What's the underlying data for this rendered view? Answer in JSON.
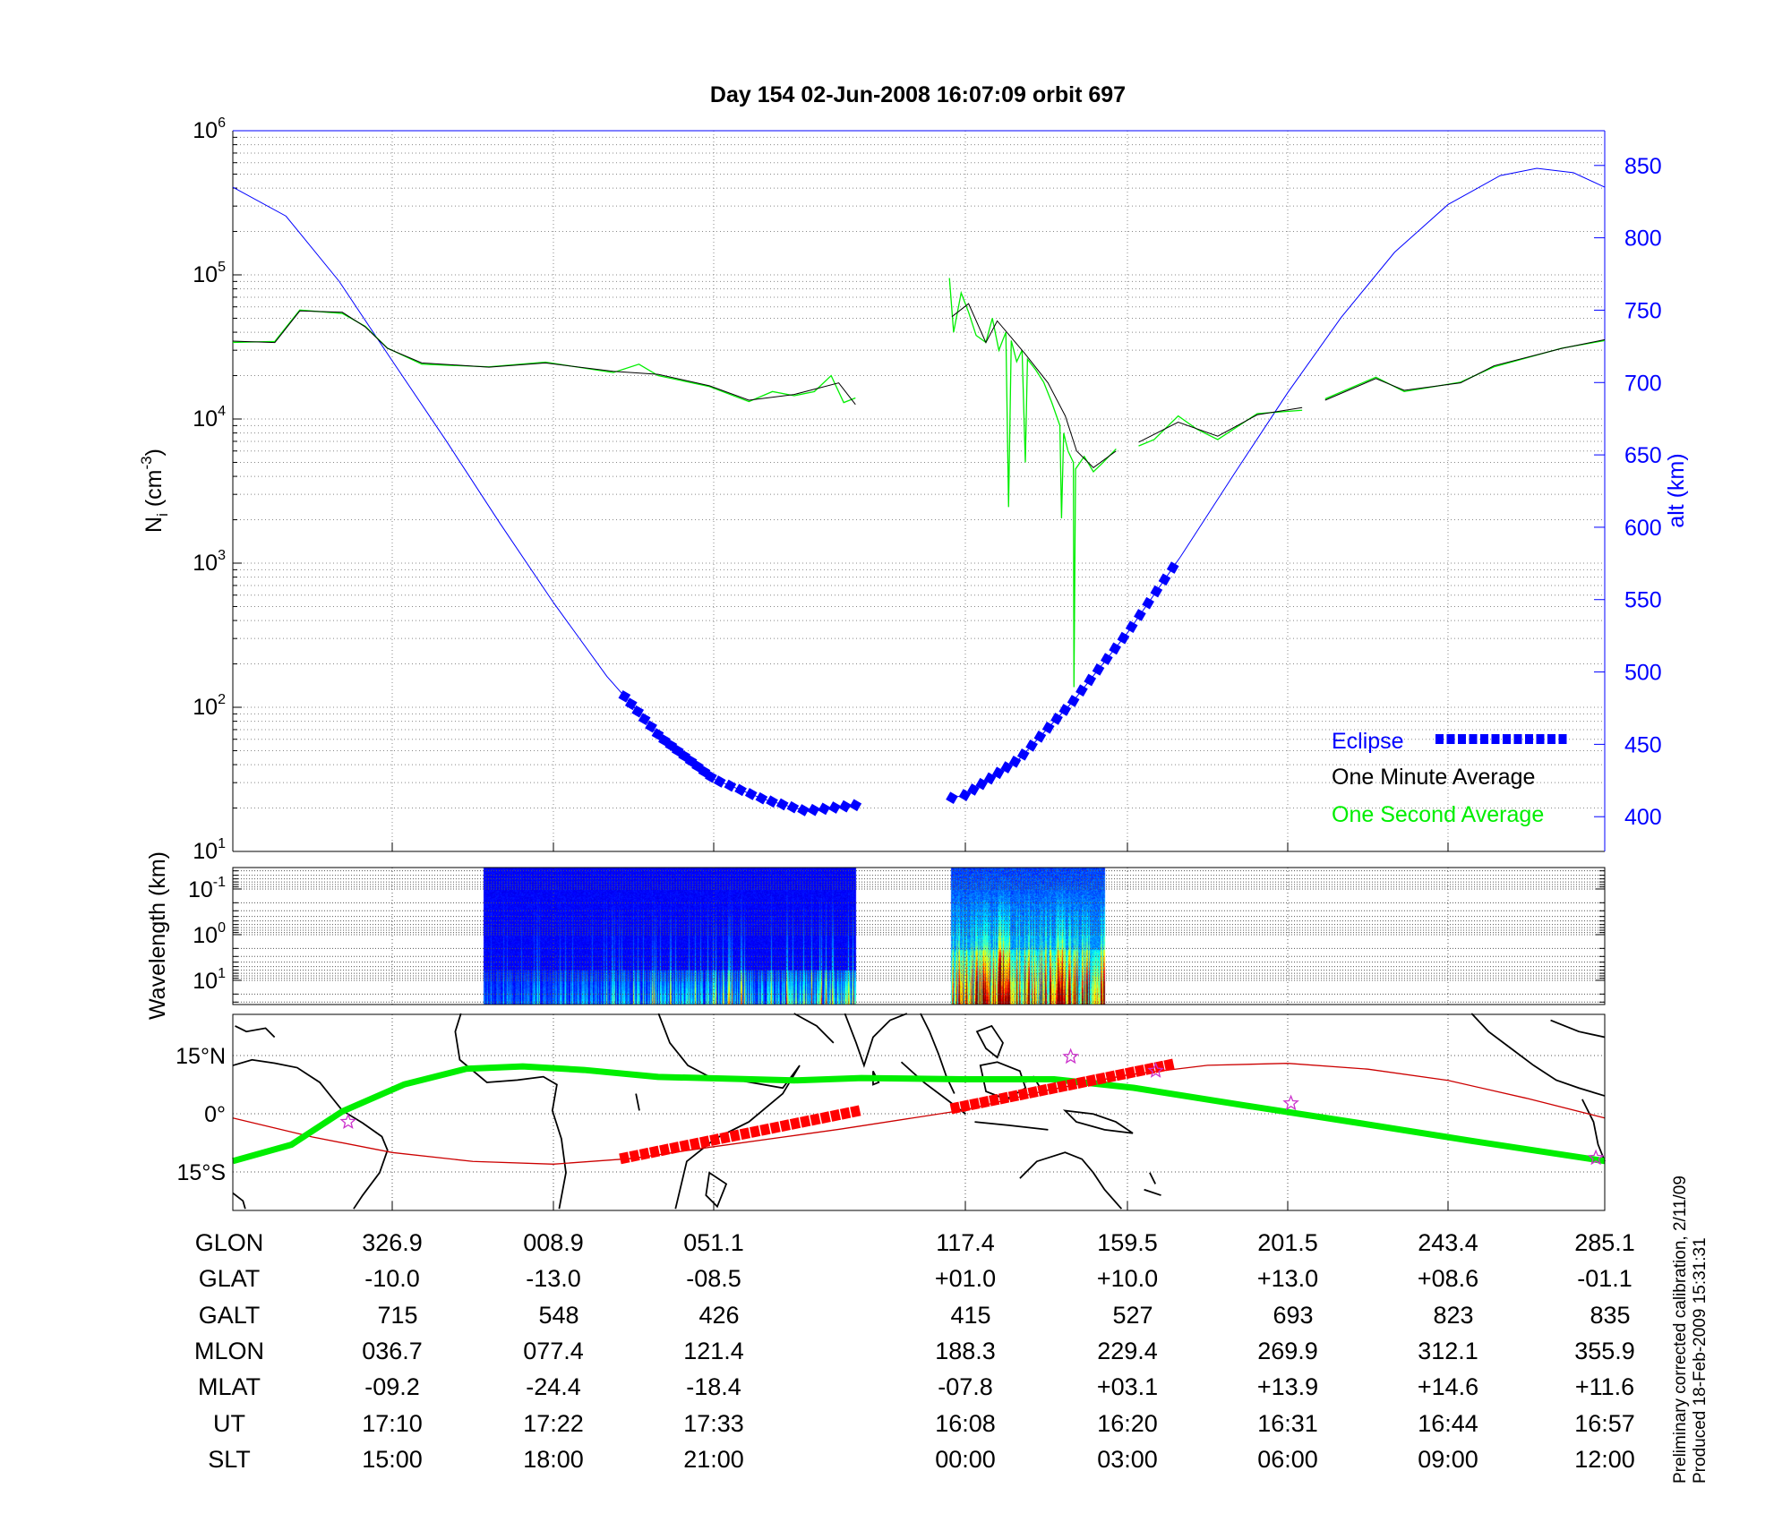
{
  "title": "Day 154  02-Jun-2008 16:07:09   orbit 697",
  "colors": {
    "altitude": "#0000ff",
    "eclipse": "#0000ff",
    "minute_avg": "#000000",
    "second_avg": "#00ee00",
    "dip_equator": "#00ee00",
    "track": "#cc0000",
    "track_eclipse": "#ff0000",
    "stars": "#cc33cc"
  },
  "chart_data": [
    {
      "type": "line",
      "title": "Day 154  02-Jun-2008 16:07:09   orbit 697",
      "ylabel": {
        "main": "N",
        "sub": "i",
        "unit": " (cm",
        "exp": "-3",
        "close": ")"
      },
      "y_scale": "log",
      "ylim": [
        10,
        1000000
      ],
      "yticks": [
        {
          "base": "10",
          "exp": "1"
        },
        {
          "base": "10",
          "exp": "2"
        },
        {
          "base": "10",
          "exp": "3"
        },
        {
          "base": "10",
          "exp": "4"
        },
        {
          "base": "10",
          "exp": "5"
        },
        {
          "base": "10",
          "exp": "6"
        }
      ],
      "y2label": "alt (km)",
      "y2lim": [
        376,
        874
      ],
      "y2ticks": [
        400,
        450,
        500,
        550,
        600,
        650,
        700,
        750,
        800,
        850
      ],
      "x_unit": "SLT (h)",
      "xlim": [
        12,
        36
      ],
      "xticks": [
        15,
        18,
        21,
        24,
        27,
        30,
        33,
        36
      ],
      "grid": true,
      "legend": {
        "placement": "bottom-right",
        "items": [
          {
            "label": "Eclipse",
            "color": "#0000ff",
            "style": "squares"
          },
          {
            "label": "One Minute Average",
            "color": "#000000",
            "style": "line"
          },
          {
            "label": "One Second Average",
            "color": "#00ee00",
            "style": "line"
          }
        ]
      },
      "series": {
        "altitude_km": [
          [
            12,
            835
          ],
          [
            13,
            815
          ],
          [
            14,
            770
          ],
          [
            15,
            715
          ],
          [
            16,
            660
          ],
          [
            17,
            603
          ],
          [
            18,
            548
          ],
          [
            19,
            497
          ],
          [
            20,
            455
          ],
          [
            21,
            426
          ],
          [
            21.6,
            412
          ],
          [
            22.1,
            404
          ],
          [
            22.69,
            408
          ]
        ],
        "altitude_km_2": [
          [
            23.84,
            413
          ],
          [
            24,
            415
          ],
          [
            25,
            440
          ],
          [
            26,
            480
          ],
          [
            27,
            527
          ],
          [
            28,
            580
          ],
          [
            29,
            637
          ],
          [
            30,
            693
          ],
          [
            31,
            745
          ],
          [
            32,
            790
          ],
          [
            33,
            823
          ],
          [
            34,
            843
          ],
          [
            34.7,
            848
          ],
          [
            35.4,
            845
          ],
          [
            36,
            835
          ]
        ],
        "eclipse_intervals": [
          [
            19.33,
            22.69
          ],
          [
            23.84,
            27.85
          ]
        ],
        "one_minute_average": [
          [
            [
              12.0,
              34700
            ],
            [
              12.79,
              33900
            ],
            [
              13.26,
              56200
            ],
            [
              14.06,
              55000
            ],
            [
              14.49,
              43600
            ],
            [
              14.91,
              30900
            ],
            [
              15.55,
              24500
            ],
            [
              16.8,
              22900
            ],
            [
              17.85,
              24500
            ],
            [
              19.12,
              21400
            ],
            [
              19.96,
              20400
            ],
            [
              20.92,
              17000
            ],
            [
              21.42,
              13500
            ],
            [
              21.96,
              14800
            ],
            [
              22.49,
              17800
            ],
            [
              22.69,
              12600
            ]
          ],
          [
            [
              23.84,
              51300
            ],
            [
              24.06,
              63100
            ],
            [
              24.38,
              33900
            ],
            [
              24.59,
              47900
            ],
            [
              25.11,
              28200
            ],
            [
              25.53,
              17800
            ],
            [
              25.85,
              10500
            ],
            [
              26.06,
              6000
            ],
            [
              26.37,
              4600
            ],
            [
              26.79,
              6000
            ]
          ],
          [
            [
              27.21,
              6900
            ],
            [
              27.95,
              9500
            ],
            [
              28.69,
              7600
            ],
            [
              29.43,
              10700
            ],
            [
              30.27,
              12000
            ]
          ],
          [
            [
              30.7,
              13500
            ],
            [
              31.65,
              19100
            ],
            [
              32.18,
              15800
            ],
            [
              33.24,
              17800
            ],
            [
              33.88,
              23400
            ],
            [
              35.18,
              30900
            ],
            [
              36.0,
              35500
            ]
          ]
        ],
        "one_second_average": [
          [
            [
              12.0,
              34000
            ],
            [
              12.79,
              34500
            ],
            [
              13.26,
              57000
            ],
            [
              14.06,
              54000
            ],
            [
              14.49,
              44000
            ],
            [
              14.91,
              31000
            ],
            [
              15.55,
              24000
            ],
            [
              16.8,
              23000
            ],
            [
              17.85,
              24800
            ],
            [
              19.12,
              21000
            ],
            [
              19.6,
              24000
            ],
            [
              19.96,
              20000
            ],
            [
              20.92,
              16800
            ],
            [
              21.42,
              13200
            ],
            [
              21.7,
              15500
            ],
            [
              21.96,
              14500
            ],
            [
              22.2,
              15500
            ],
            [
              22.4,
              20000
            ],
            [
              22.55,
              13000
            ],
            [
              22.69,
              14000
            ]
          ],
          [
            [
              23.81,
              95000
            ],
            [
              23.86,
              40000
            ],
            [
              23.95,
              75000
            ],
            [
              24.06,
              55000
            ],
            [
              24.2,
              38000
            ],
            [
              24.38,
              34000
            ],
            [
              24.5,
              50000
            ],
            [
              24.62,
              30000
            ],
            [
              24.75,
              40000
            ],
            [
              24.8,
              2450
            ],
            [
              24.85,
              35000
            ],
            [
              24.95,
              25000
            ],
            [
              25.05,
              30000
            ],
            [
              25.11,
              5000
            ],
            [
              25.15,
              26000
            ],
            [
              25.3,
              22000
            ],
            [
              25.45,
              18000
            ],
            [
              25.6,
              13000
            ],
            [
              25.75,
              9000
            ],
            [
              25.78,
              2050
            ],
            [
              25.82,
              8000
            ],
            [
              25.9,
              6000
            ],
            [
              26.0,
              5000
            ],
            [
              26.01,
              138
            ],
            [
              26.04,
              4500
            ],
            [
              26.2,
              5500
            ],
            [
              26.37,
              4300
            ],
            [
              26.55,
              5000
            ],
            [
              26.79,
              6200
            ]
          ],
          [
            [
              27.21,
              6500
            ],
            [
              27.5,
              7200
            ],
            [
              27.95,
              10500
            ],
            [
              28.3,
              8500
            ],
            [
              28.69,
              7200
            ],
            [
              29.43,
              10900
            ],
            [
              30.27,
              11500
            ]
          ],
          [
            [
              30.7,
              13800
            ],
            [
              31.65,
              19500
            ],
            [
              32.18,
              15500
            ],
            [
              33.24,
              18000
            ],
            [
              33.88,
              23000
            ],
            [
              35.18,
              31000
            ],
            [
              36.0,
              35000
            ]
          ]
        ]
      }
    },
    {
      "type": "heatmap",
      "ylabel": "Wavelength (km)",
      "y_scale": "log",
      "y_inverted": true,
      "yticks": [
        {
          "base": "10",
          "exp": "-1"
        },
        {
          "base": "10",
          "exp": "0"
        },
        {
          "base": "10",
          "exp": "1"
        }
      ],
      "colormap": "jet",
      "segments": [
        [
          16.7,
          22.7
        ],
        [
          23.83,
          26.58
        ]
      ]
    },
    {
      "type": "map",
      "yticks": [
        "15°N",
        "0°",
        "15°S"
      ],
      "ylim": [
        -25.6,
        25.6
      ],
      "series": {
        "dip_equator": [
          [
            12,
            -12.2
          ],
          [
            13.1,
            -8.0
          ],
          [
            14.06,
            0.6
          ],
          [
            15.23,
            7.6
          ],
          [
            16.38,
            11.6
          ],
          [
            17.43,
            12.2
          ],
          [
            18.57,
            11.3
          ],
          [
            19.96,
            9.5
          ],
          [
            21.96,
            8.6
          ],
          [
            22.76,
            9.2
          ],
          [
            23.97,
            8.9
          ],
          [
            25.64,
            8.9
          ],
          [
            27.11,
            6.7
          ],
          [
            29.22,
            2.1
          ],
          [
            31.33,
            -2.4
          ],
          [
            33.45,
            -7.0
          ],
          [
            36,
            -12.2
          ]
        ],
        "track_glat": [
          [
            12,
            -1.1
          ],
          [
            13.5,
            -6
          ],
          [
            15,
            -10
          ],
          [
            16.5,
            -12.3
          ],
          [
            18,
            -13
          ],
          [
            19.5,
            -11.5
          ],
          [
            21,
            -8.5
          ],
          [
            22.5,
            -4
          ],
          [
            24,
            1
          ],
          [
            25.5,
            6
          ],
          [
            27,
            10
          ],
          [
            28.5,
            12.5
          ],
          [
            30,
            13
          ],
          [
            31.5,
            11.5
          ],
          [
            33,
            8.6
          ],
          [
            34.5,
            4
          ],
          [
            36,
            -1.1
          ]
        ],
        "track_eclipse": [
          [
            [
              19.33,
              -11.4
            ],
            [
              22.69,
              0.6
            ]
          ],
          [
            [
              23.88,
              1.5
            ],
            [
              27.78,
              12.6
            ]
          ]
        ],
        "stars": [
          [
            14.17,
            -2.1
          ],
          [
            25.95,
            14.7
          ],
          [
            27.53,
            11.1
          ],
          [
            30.06,
            2.7
          ],
          [
            35.83,
            -11.4
          ]
        ]
      }
    }
  ],
  "table": {
    "rows": [
      {
        "label": "GLON",
        "values": [
          "326.9",
          "008.9",
          "051.1",
          "117.4",
          "159.5",
          "201.5",
          "243.4",
          "285.1"
        ]
      },
      {
        "label": "GLAT",
        "values": [
          "-10.0",
          "-13.0",
          "-08.5",
          "+01.0",
          "+10.0",
          "+13.0",
          "+08.6",
          "-01.1"
        ]
      },
      {
        "label": "GALT",
        "values": [
          "715",
          "548",
          "426",
          "415",
          "527",
          "693",
          "823",
          "835"
        ]
      },
      {
        "label": "MLON",
        "values": [
          "036.7",
          "077.4",
          "121.4",
          "188.3",
          "229.4",
          "269.9",
          "312.1",
          "355.9"
        ]
      },
      {
        "label": "MLAT",
        "values": [
          "-09.2",
          "-24.4",
          "-18.4",
          "-07.8",
          "+03.1",
          "+13.9",
          "+14.6",
          "+11.6"
        ]
      },
      {
        "label": "UT",
        "values": [
          "17:10",
          "17:22",
          "17:33",
          "16:08",
          "16:20",
          "16:31",
          "16:44",
          "16:57"
        ]
      },
      {
        "label": "SLT",
        "values": [
          "15:00",
          "18:00",
          "21:00",
          "00:00",
          "03:00",
          "06:00",
          "09:00",
          "12:00"
        ]
      }
    ]
  },
  "footer": {
    "line1": "Preliminary corrected calibration, 2/11/09",
    "line2": "Produced 18-Feb-2009 15:31:31"
  }
}
